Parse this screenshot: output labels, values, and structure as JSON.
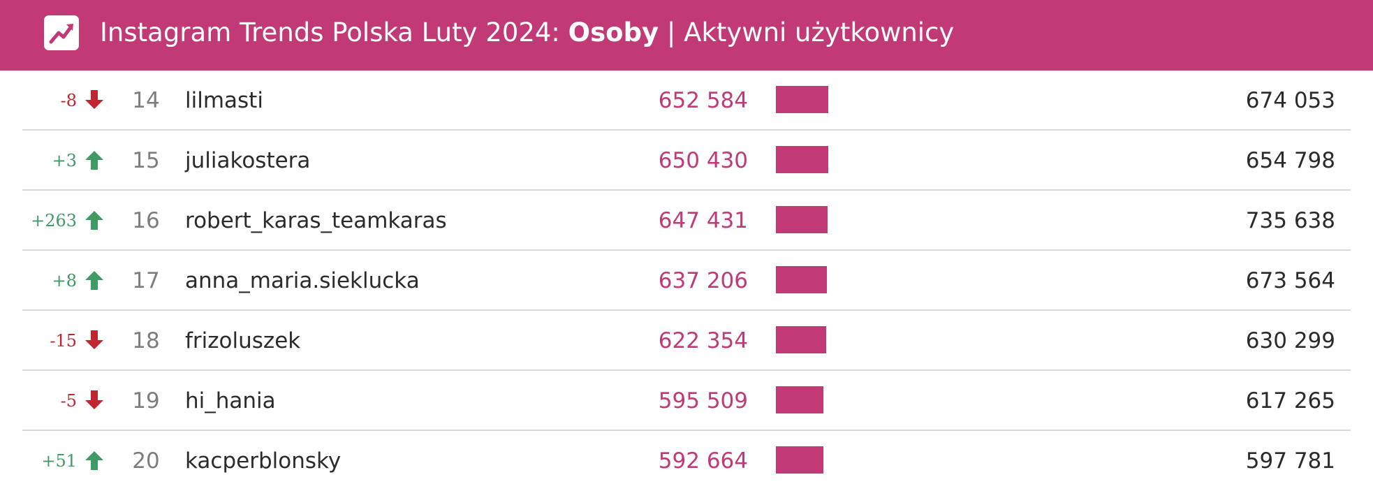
{
  "header": {
    "title_prefix": "Instagram Trends Polska Luty 2024: ",
    "title_bold": "Osoby",
    "title_suffix": " | Aktywni użytkownicy",
    "logo_icon": "trending-up-icon",
    "background_color": "#c13a75"
  },
  "colors": {
    "accent": "#c13a75",
    "up": "#3f9a64",
    "down": "#c0262f"
  },
  "bar_scale_max": 652584,
  "rows": [
    {
      "change": "-8",
      "direction": "down",
      "rank": "14",
      "name": "lilmasti",
      "active": "652 584",
      "active_value": 652584,
      "total": "674 053"
    },
    {
      "change": "+3",
      "direction": "up",
      "rank": "15",
      "name": "juliakostera",
      "active": "650 430",
      "active_value": 650430,
      "total": "654 798"
    },
    {
      "change": "+263",
      "direction": "up",
      "rank": "16",
      "name": "robert_karas_teamkaras",
      "active": "647 431",
      "active_value": 647431,
      "total": "735 638"
    },
    {
      "change": "+8",
      "direction": "up",
      "rank": "17",
      "name": "anna_maria.sieklucka",
      "active": "637 206",
      "active_value": 637206,
      "total": "673 564"
    },
    {
      "change": "-15",
      "direction": "down",
      "rank": "18",
      "name": "frizoluszek",
      "active": "622 354",
      "active_value": 622354,
      "total": "630 299"
    },
    {
      "change": "-5",
      "direction": "down",
      "rank": "19",
      "name": "hi_hania",
      "active": "595 509",
      "active_value": 595509,
      "total": "617 265"
    },
    {
      "change": "+51",
      "direction": "up",
      "rank": "20",
      "name": "kacperblonsky",
      "active": "592 664",
      "active_value": 592664,
      "total": "597 781"
    }
  ]
}
